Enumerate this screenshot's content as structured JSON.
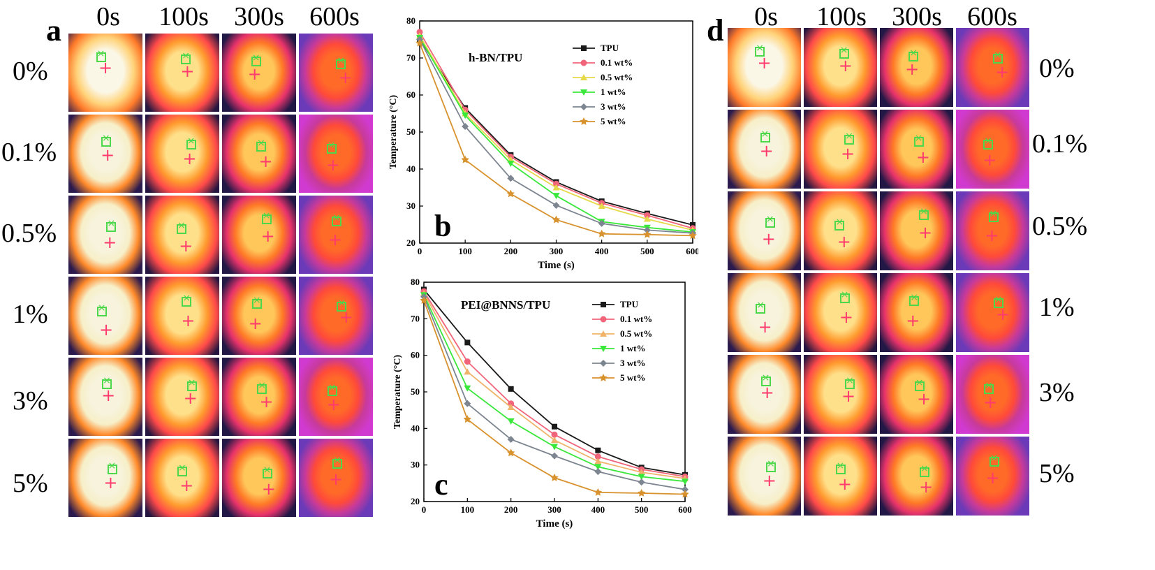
{
  "panel_a": {
    "letter": "a",
    "times": [
      "0s",
      "100s",
      "300s",
      "600s"
    ],
    "rows": [
      "0%",
      "0.1%",
      "0.5%",
      "1%",
      "3%",
      "5%"
    ]
  },
  "panel_d": {
    "letter": "d",
    "times": [
      "0s",
      "100s",
      "300s",
      "600s"
    ],
    "rows": [
      "0%",
      "0.1%",
      "0.5%",
      "1%",
      "3%",
      "5%"
    ]
  },
  "chart_data": [
    {
      "type": "line",
      "panel_letter": "b",
      "title": "h-BN/TPU",
      "xlabel": "Time (s)",
      "ylabel": "Temperature (°C)",
      "x": [
        0,
        100,
        200,
        300,
        400,
        500,
        600
      ],
      "xlim": [
        0,
        600
      ],
      "ylim": [
        20,
        80
      ],
      "xticks": [
        "0",
        "100",
        "200",
        "300",
        "400",
        "500",
        "600"
      ],
      "yticks": [
        "20",
        "30",
        "40",
        "50",
        "60",
        "70",
        "80"
      ],
      "legend_position": "top-right",
      "series": [
        {
          "name": "TPU",
          "color": "#1a1a1a",
          "marker": "square",
          "values": [
            75,
            56.5,
            43.8,
            36.5,
            31.3,
            28.0,
            24.9
          ]
        },
        {
          "name": "0.1 wt%",
          "color": "#f0657a",
          "marker": "circle",
          "values": [
            77,
            56.0,
            43.3,
            36.0,
            30.8,
            27.5,
            24.0
          ]
        },
        {
          "name": "0.5 wt%",
          "color": "#e6d94a",
          "marker": "triangle-up",
          "values": [
            76,
            55.0,
            42.5,
            35.0,
            30.0,
            26.5,
            23.5
          ]
        },
        {
          "name": "1 wt%",
          "color": "#39e83a",
          "marker": "triangle-down",
          "values": [
            75.5,
            54.5,
            41.5,
            32.8,
            25.8,
            24.2,
            23.0
          ]
        },
        {
          "name": "3 wt%",
          "color": "#7d8590",
          "marker": "diamond",
          "values": [
            75,
            51.5,
            37.5,
            30.2,
            25.3,
            23.5,
            22.7
          ]
        },
        {
          "name": "5 wt%",
          "color": "#d8922e",
          "marker": "star",
          "values": [
            74,
            42.5,
            33.3,
            26.3,
            22.5,
            22.3,
            22.0
          ]
        }
      ]
    },
    {
      "type": "line",
      "panel_letter": "c",
      "title": "PEI@BNNS/TPU",
      "xlabel": "Time (s)",
      "ylabel": "Temperature (°C)",
      "x": [
        0,
        100,
        200,
        300,
        400,
        500,
        600
      ],
      "xlim": [
        0,
        600
      ],
      "ylim": [
        20,
        80
      ],
      "xticks": [
        "0",
        "100",
        "200",
        "300",
        "400",
        "500",
        "600"
      ],
      "yticks": [
        "20",
        "30",
        "40",
        "50",
        "60",
        "70",
        "80"
      ],
      "legend_position": "top-right",
      "series": [
        {
          "name": "TPU",
          "color": "#1a1a1a",
          "marker": "square",
          "values": [
            78,
            63.5,
            50.8,
            40.5,
            34.0,
            29.3,
            27.3
          ]
        },
        {
          "name": "0.1 wt%",
          "color": "#f0657a",
          "marker": "circle",
          "values": [
            77.5,
            58.3,
            46.8,
            38.3,
            32.3,
            28.8,
            26.8
          ]
        },
        {
          "name": "0.5 wt%",
          "color": "#efb36a",
          "marker": "triangle-up",
          "values": [
            77,
            55.5,
            45.8,
            36.8,
            31.0,
            28.0,
            26.3
          ]
        },
        {
          "name": "1 wt%",
          "color": "#39e83a",
          "marker": "triangle-down",
          "values": [
            76.5,
            51.0,
            42.0,
            35.0,
            29.5,
            26.8,
            25.5
          ]
        },
        {
          "name": "3 wt%",
          "color": "#7d8590",
          "marker": "diamond",
          "values": [
            76,
            46.8,
            37.0,
            32.5,
            28.2,
            25.3,
            23.3
          ]
        },
        {
          "name": "5 wt%",
          "color": "#d8922e",
          "marker": "star",
          "values": [
            75,
            42.5,
            33.3,
            26.5,
            22.5,
            22.3,
            22.0
          ]
        }
      ]
    }
  ]
}
